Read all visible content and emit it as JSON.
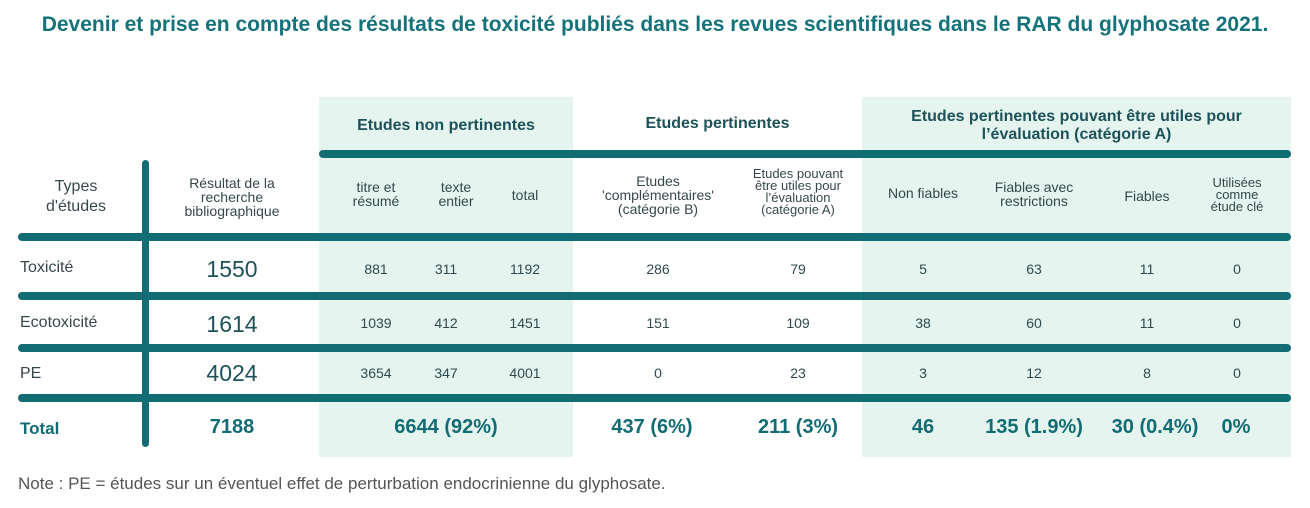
{
  "title": "Devenir et prise en compte des résultats de toxicité publiés dans les revues scientifiques dans le RAR du glyphosate 2021.",
  "groups": {
    "non_pertinentes": "Etudes non pertinentes",
    "pertinentes": "Etudes pertinentes",
    "utiles_line1": "Etudes pertinentes pouvant être utiles pour",
    "utiles_line2": "l’évaluation (catégorie A)"
  },
  "headers": {
    "types": [
      "Types",
      "d'études"
    ],
    "resultat": [
      "Résultat de la",
      "recherche",
      "bibliographique"
    ],
    "titre": [
      "titre et",
      "résumé"
    ],
    "texte": [
      "texte",
      "entier"
    ],
    "total": "total",
    "complementaires": [
      "Etudes",
      "'complémentaires'",
      "(catégorie B)"
    ],
    "utiles": [
      "Etudes pouvant",
      "être utiles pour",
      "l’évaluation",
      "(catégorie A)"
    ],
    "non_fiables": "Non fiables",
    "fiables_restrictions": [
      "Fiables avec",
      "restrictions"
    ],
    "fiables": "Fiables",
    "utilisees": [
      "Utilisées",
      "comme",
      "étude clé"
    ]
  },
  "rows": [
    {
      "label": "Toxicité",
      "resultat": "1550",
      "titre": "881",
      "texte": "311",
      "total": "1192",
      "cat_b": "286",
      "cat_a": "79",
      "non_fiables": "5",
      "fiables_restr": "63",
      "fiables": "11",
      "cle": "0"
    },
    {
      "label": "Ecotoxicité",
      "resultat": "1614",
      "titre": "1039",
      "texte": "412",
      "total": "1451",
      "cat_b": "151",
      "cat_a": "109",
      "non_fiables": "38",
      "fiables_restr": "60",
      "fiables": "11",
      "cle": "0"
    },
    {
      "label": "PE",
      "resultat": "4024",
      "titre": "3654",
      "texte": "347",
      "total": "4001",
      "cat_b": "0",
      "cat_a": "23",
      "non_fiables": "3",
      "fiables_restr": "12",
      "fiables": "8",
      "cle": "0"
    }
  ],
  "totals": {
    "label": "Total",
    "resultat": "7188",
    "non_pertinentes": "6644 (92%)",
    "cat_b": "437 (6%)",
    "cat_a": "211 (3%)",
    "non_fiables": "46",
    "fiables_restr": "135 (1.9%)",
    "fiables": "30 (0.4%)",
    "cle": "0%"
  },
  "note": "Note : PE = études sur un éventuel effet de perturbation endocrinienne du glyphosate.",
  "colors": {
    "accent": "#126c73",
    "shade": "#e5f4ee",
    "title": "#15727a"
  }
}
